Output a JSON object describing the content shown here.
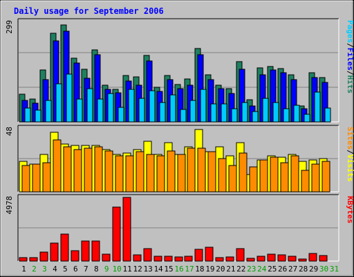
{
  "chart_data": {
    "type": "bar",
    "title": "Daily usage for September 2006",
    "categories": [
      "1",
      "2",
      "3",
      "4",
      "5",
      "6",
      "7",
      "8",
      "9",
      "10",
      "11",
      "12",
      "13",
      "14",
      "15",
      "16",
      "17",
      "18",
      "19",
      "20",
      "21",
      "22",
      "23",
      "24",
      "25",
      "26",
      "27",
      "28",
      "29",
      "30",
      "31"
    ],
    "weekend_days": [
      "2",
      "3",
      "9",
      "10",
      "16",
      "17",
      "23",
      "24",
      "30",
      "31"
    ],
    "panels": [
      {
        "id": "hits-files-pages",
        "ymax_label": "299",
        "ylim": [
          0,
          299
        ],
        "series": [
          {
            "name": "Hits",
            "color": "#1e8060",
            "values": [
              83,
              69,
              154,
              263,
              289,
              190,
              156,
              214,
              110,
              97,
              139,
              135,
              198,
              104,
              138,
              111,
              128,
              218,
              140,
              110,
              99,
              180,
              67,
              160,
              164,
              159,
              141,
              47,
              146,
              133,
              0
            ]
          },
          {
            "name": "Files",
            "color": "#0000ff",
            "values": [
              64,
              55,
              126,
              241,
              270,
              175,
              130,
              201,
              97,
              86,
              121,
              109,
              181,
              91,
              125,
              100,
              109,
              199,
              126,
              98,
              84,
              157,
              48,
              140,
              155,
              146,
              126,
              40,
              131,
              117,
              0
            ]
          },
          {
            "name": "Pages",
            "color": "#00ccff",
            "values": [
              42,
              35,
              64,
              114,
              143,
              69,
              99,
              68,
              85,
              43,
              96,
              71,
              92,
              57,
              80,
              38,
              64,
              97,
              54,
              53,
              40,
              58,
              30,
              71,
              57,
              40,
              50,
              22,
              89,
              41,
              0
            ]
          }
        ],
        "legend": [
          "Pages",
          "Files",
          "Hits"
        ]
      },
      {
        "id": "visits-sites",
        "ymax_label": "48",
        "ylim": [
          0,
          48
        ],
        "series": [
          {
            "name": "Visits",
            "color": "#ffff00",
            "values": [
              23,
              21,
              28,
              45,
              36,
              35,
              35,
              35,
              32,
              28,
              29,
              32,
              38,
              28,
              37,
              28,
              34,
              47,
              30,
              34,
              27,
              37,
              13,
              24,
              27,
              26,
              28,
              23,
              24,
              25,
              0
            ]
          },
          {
            "name": "Sites",
            "color": "#ff8c00",
            "values": [
              20,
              21,
              22,
              39,
              34,
              32,
              33,
              34,
              31,
              27,
              27,
              30,
              28,
              27,
              31,
              28,
              33,
              33,
              30,
              25,
              20,
              29,
              19,
              24,
              26,
              22,
              27,
              16,
              21,
              23,
              0
            ]
          }
        ],
        "legend": [
          "Sites",
          "/",
          "Visits"
        ]
      },
      {
        "id": "kbytes",
        "ymax_label": "4978",
        "ylim": [
          0,
          4978
        ],
        "series": [
          {
            "name": "KBytes",
            "color": "#ff0000",
            "values": [
              260,
              261,
              721,
              1428,
              2117,
              810,
              1547,
              1547,
              529,
              4202,
              4978,
              502,
              990,
              356,
              400,
              339,
              357,
              909,
              1090,
              296,
              306,
              980,
              219,
              404,
              559,
              484,
              391,
              156,
              598,
              452,
              0
            ]
          }
        ],
        "legend": [
          "KBytes"
        ]
      }
    ],
    "colors": {
      "background": "#c0c0c0",
      "title": "#0000ff",
      "hits": "#1e8060",
      "files": "#0000ff",
      "pages": "#00ccff",
      "visits": "#ffff00",
      "sites": "#ff8c00",
      "kbytes": "#ff0000",
      "weekday_label": "#000000",
      "weekend_label": "#00a000"
    }
  }
}
